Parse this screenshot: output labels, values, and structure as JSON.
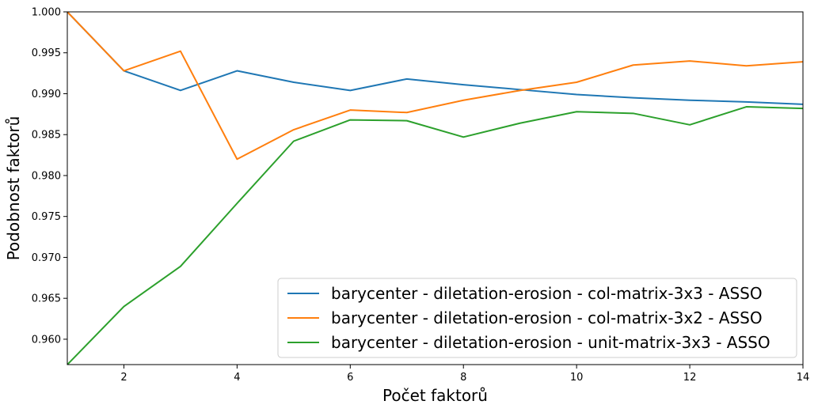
{
  "chart_data": {
    "type": "line",
    "xlabel": "Počet faktorů",
    "ylabel": "Podobnost faktorů",
    "xlim": [
      1,
      14
    ],
    "ylim": [
      0.9569,
      1.0
    ],
    "x_ticks": [
      2,
      4,
      6,
      8,
      10,
      12,
      14
    ],
    "y_ticks": [
      0.96,
      0.965,
      0.97,
      0.975,
      0.98,
      0.985,
      0.99,
      0.995,
      1.0
    ],
    "y_tick_labels": [
      "0.960",
      "0.965",
      "0.970",
      "0.975",
      "0.980",
      "0.985",
      "0.990",
      "0.995",
      "1.000"
    ],
    "x": [
      1,
      2,
      3,
      4,
      5,
      6,
      7,
      8,
      9,
      10,
      11,
      12,
      13,
      14
    ],
    "grid": false,
    "legend_position": "lower-right",
    "series": [
      {
        "name": "barycenter - diletation-erosion - col-matrix-3x3 - ASSO",
        "color": "#1f77b4",
        "values": [
          1.0,
          0.9928,
          0.9904,
          0.9928,
          0.9914,
          0.9904,
          0.9918,
          0.9911,
          0.9905,
          0.9899,
          0.9895,
          0.9892,
          0.989,
          0.9887
        ]
      },
      {
        "name": "barycenter - diletation-erosion - col-matrix-3x2 - ASSO",
        "color": "#ff7f0e",
        "values": [
          1.0,
          0.9928,
          0.9952,
          0.982,
          0.9856,
          0.988,
          0.9877,
          0.9892,
          0.9904,
          0.9914,
          0.9935,
          0.994,
          0.9934,
          0.9939
        ]
      },
      {
        "name": "barycenter - diletation-erosion - unit-matrix-3x3 - ASSO",
        "color": "#2ca02c",
        "values": [
          0.9569,
          0.964,
          0.9689,
          0.9766,
          0.9842,
          0.9868,
          0.9867,
          0.9847,
          0.9864,
          0.9878,
          0.9876,
          0.9862,
          0.9884,
          0.9882
        ]
      }
    ]
  }
}
